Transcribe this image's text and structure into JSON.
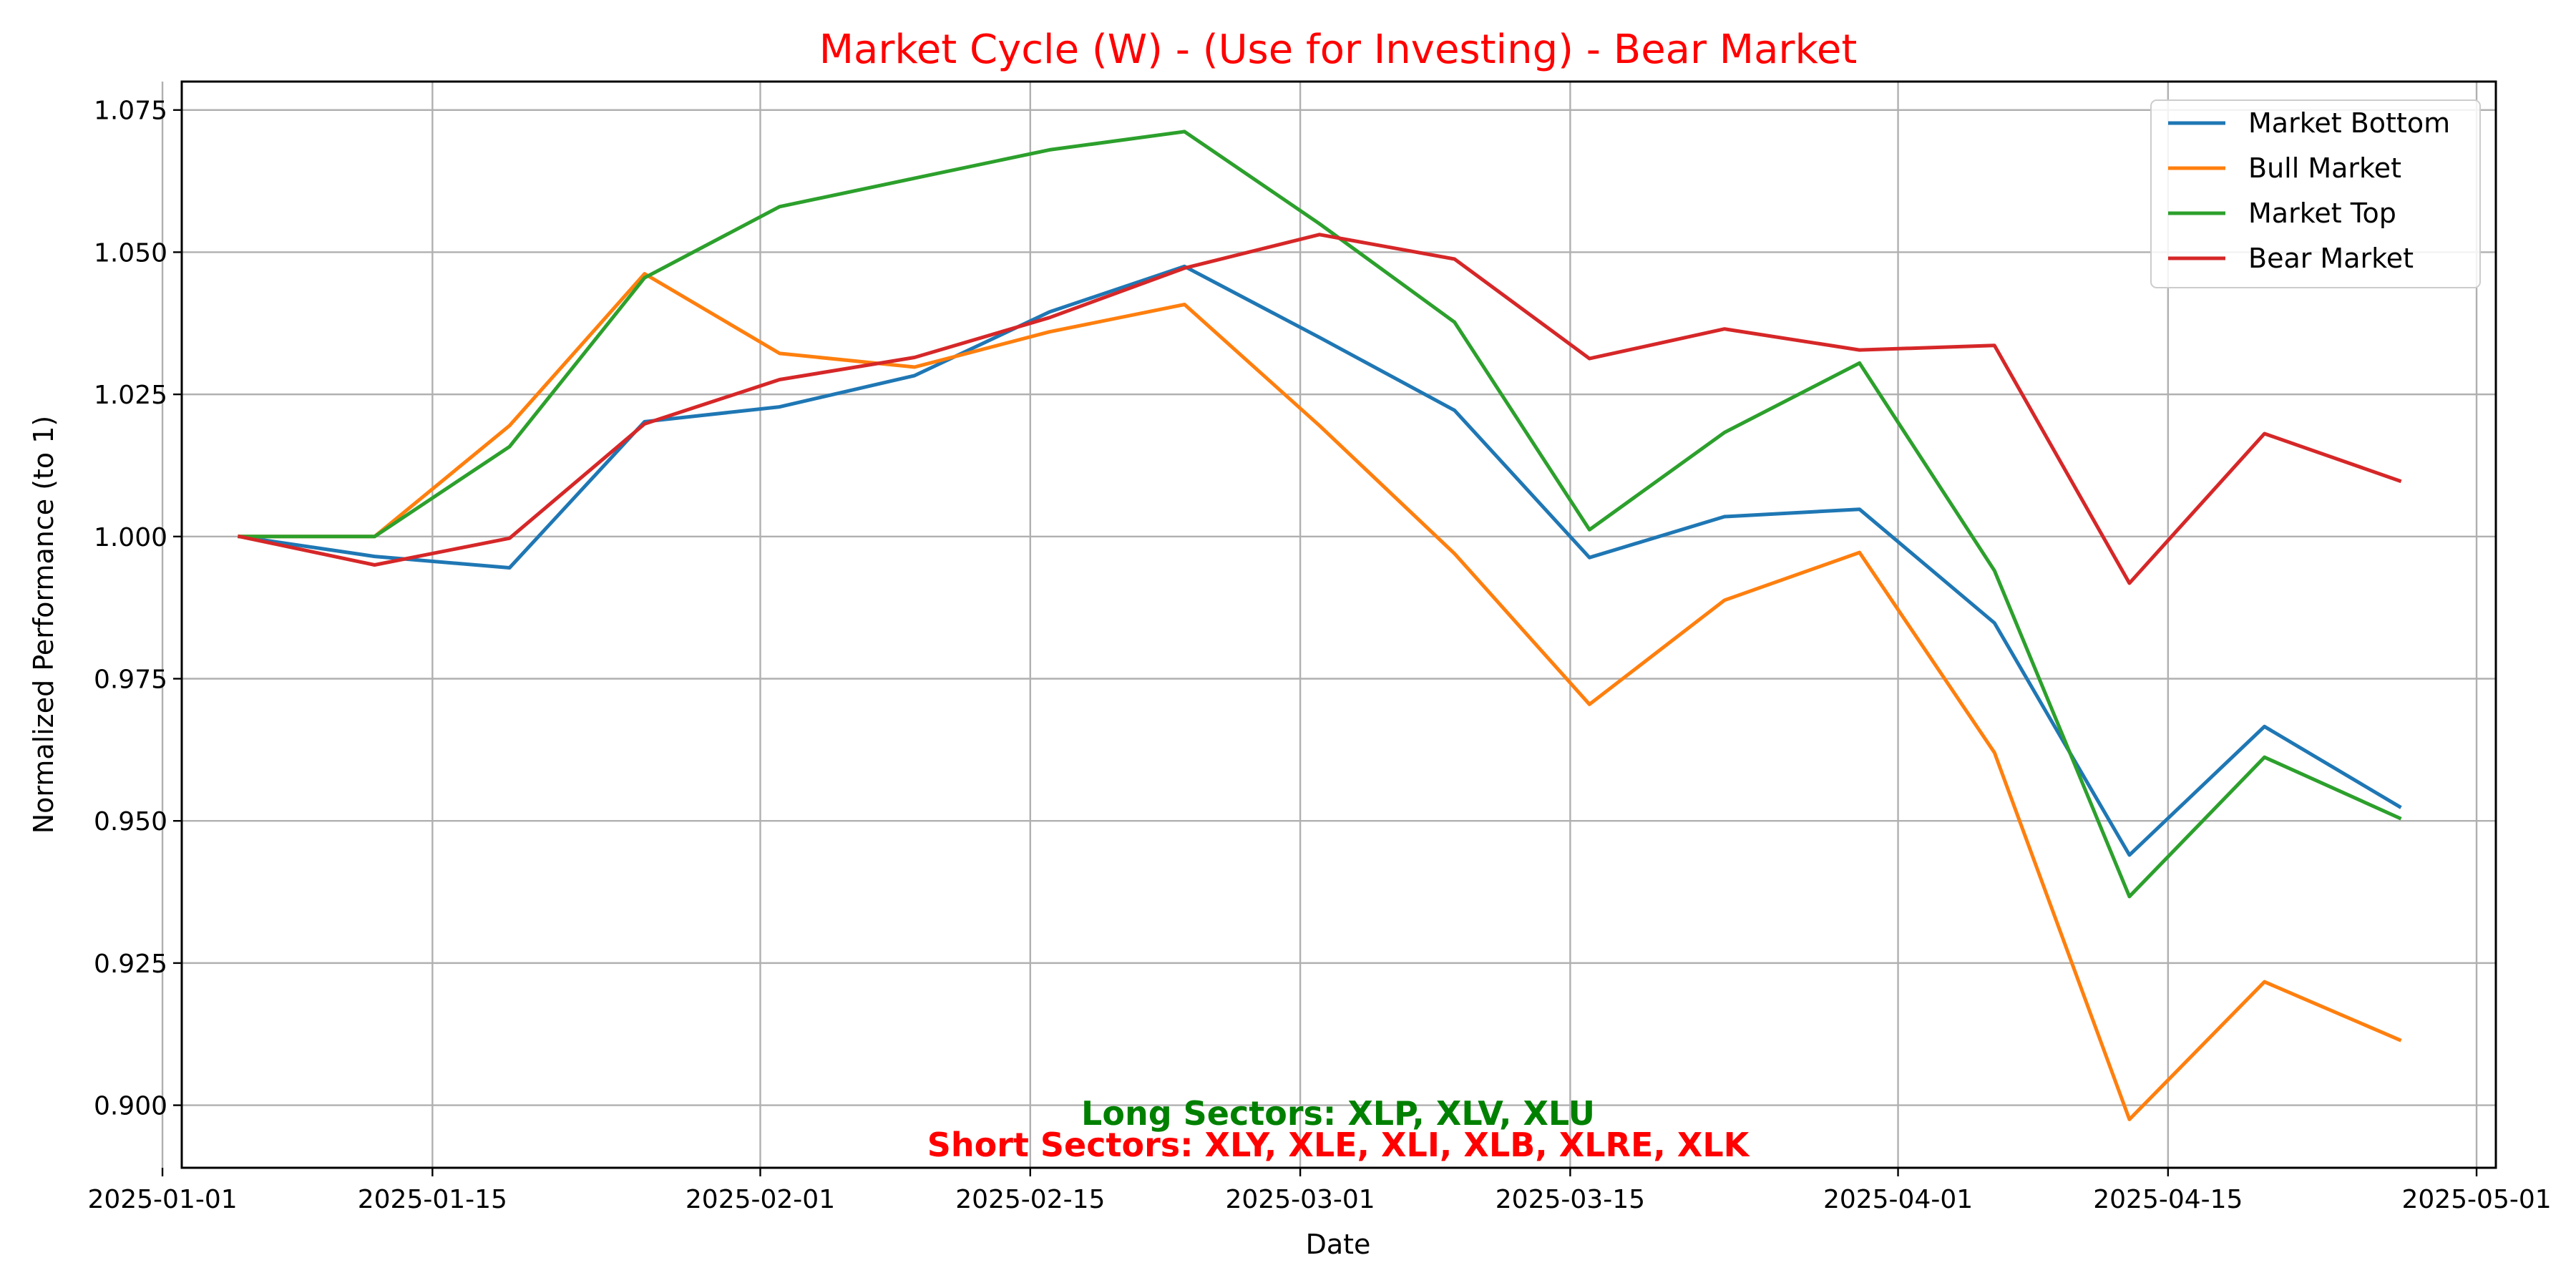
{
  "chart_data": {
    "type": "line",
    "title": "Market Cycle (W) - (Use for Investing) - Bear Market",
    "xlabel": "Date",
    "ylabel": "Normalized Performance (to 1)",
    "x": [
      "2025-01-05",
      "2025-01-12",
      "2025-01-19",
      "2025-01-26",
      "2025-02-02",
      "2025-02-09",
      "2025-02-16",
      "2025-02-23",
      "2025-03-02",
      "2025-03-09",
      "2025-03-16",
      "2025-03-23",
      "2025-03-30",
      "2025-04-06",
      "2025-04-13",
      "2025-04-20",
      "2025-04-27"
    ],
    "xlim": [
      "2025-01-02",
      "2025-05-02"
    ],
    "xticks": [
      "2025-01-01",
      "2025-01-15",
      "2025-02-01",
      "2025-02-15",
      "2025-03-01",
      "2025-03-15",
      "2025-04-01",
      "2025-04-15",
      "2025-05-01"
    ],
    "ylim": [
      0.889,
      1.08
    ],
    "yticks": [
      0.9,
      0.925,
      0.95,
      0.975,
      1.0,
      1.025,
      1.05,
      1.075
    ],
    "ytick_labels": [
      "0.900",
      "0.925",
      "0.950",
      "0.975",
      "1.000",
      "1.025",
      "1.050",
      "1.075"
    ],
    "grid": true,
    "legend_position": "top-right",
    "series": [
      {
        "name": "Market Bottom",
        "color": "#1f77b4",
        "values": [
          1.0,
          0.9965,
          0.9945,
          1.0202,
          1.0228,
          1.0283,
          1.0395,
          1.0475,
          1.035,
          1.0222,
          0.9963,
          1.0035,
          1.0048,
          0.9848,
          0.944,
          0.9666,
          0.9525
        ]
      },
      {
        "name": "Bull Market",
        "color": "#ff7f0e",
        "values": [
          1.0,
          1.0,
          1.0195,
          1.0462,
          1.0322,
          1.0298,
          1.036,
          1.0408,
          1.0195,
          0.997,
          0.9705,
          0.9888,
          0.9972,
          0.962,
          0.8975,
          0.9217,
          0.9115
        ]
      },
      {
        "name": "Market Top",
        "color": "#2ca02c",
        "values": [
          1.0,
          1.0,
          1.0158,
          1.0455,
          1.058,
          1.063,
          1.068,
          1.0712,
          1.055,
          1.0377,
          1.0012,
          1.0183,
          1.0305,
          0.994,
          0.9367,
          0.9612,
          0.9505
        ]
      },
      {
        "name": "Bear Market",
        "color": "#d62728",
        "values": [
          1.0,
          0.995,
          0.9997,
          1.0198,
          1.0276,
          1.0315,
          1.0385,
          1.0472,
          1.0531,
          1.0488,
          1.0313,
          1.0365,
          1.0328,
          1.0336,
          0.9918,
          1.0181,
          1.0098
        ]
      }
    ],
    "annotations": [
      {
        "text": "Long Sectors: XLP, XLV, XLU",
        "color": "#008000"
      },
      {
        "text": "Short Sectors: XLY, XLE, XLI, XLB, XLRE, XLK",
        "color": "#ff0000"
      }
    ],
    "title_color": "#ff0000"
  }
}
